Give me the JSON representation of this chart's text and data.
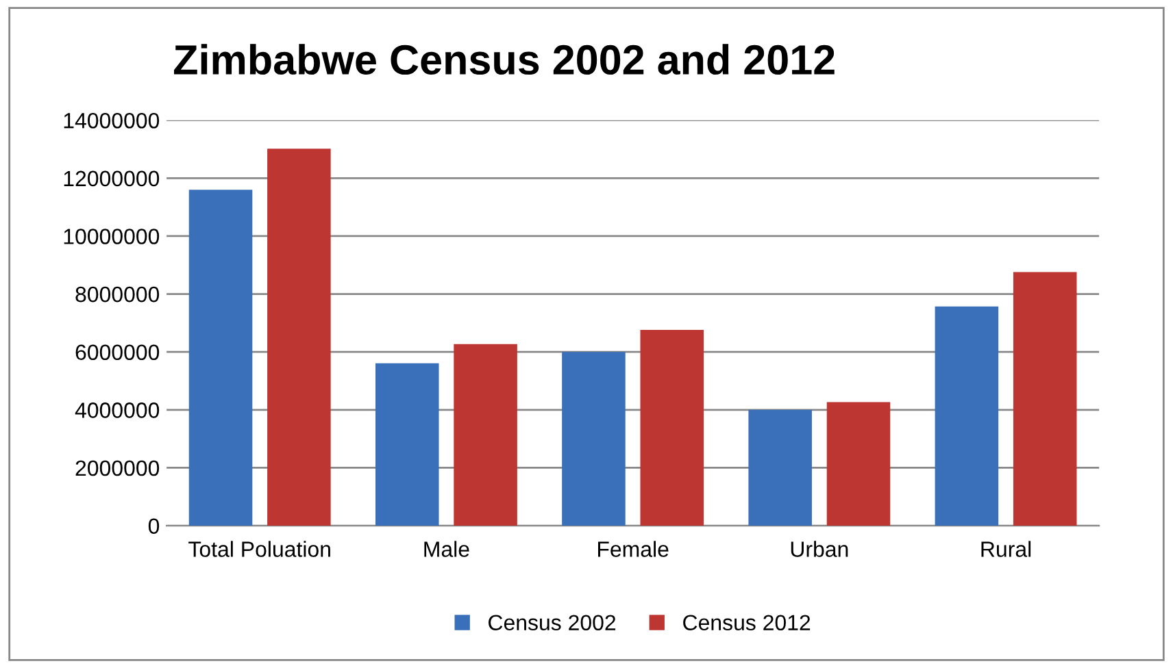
{
  "chart_data": {
    "type": "bar",
    "title": "Zimbabwe Census 2002 and 2012",
    "categories": [
      "Total Poluation",
      "Male",
      "Female",
      "Urban",
      "Rural"
    ],
    "series": [
      {
        "name": "Census 2002",
        "color": "#3a6fba",
        "values": [
          11600000,
          5610000,
          6000000,
          4000000,
          7570000
        ]
      },
      {
        "name": "Census 2012",
        "color": "#be3632",
        "values": [
          13020000,
          6270000,
          6760000,
          4270000,
          8760000
        ]
      }
    ],
    "ylim": [
      0,
      14000000
    ],
    "yticks": [
      0,
      2000000,
      4000000,
      6000000,
      8000000,
      10000000,
      12000000,
      14000000
    ],
    "grid": "y",
    "legend": "bottom"
  }
}
